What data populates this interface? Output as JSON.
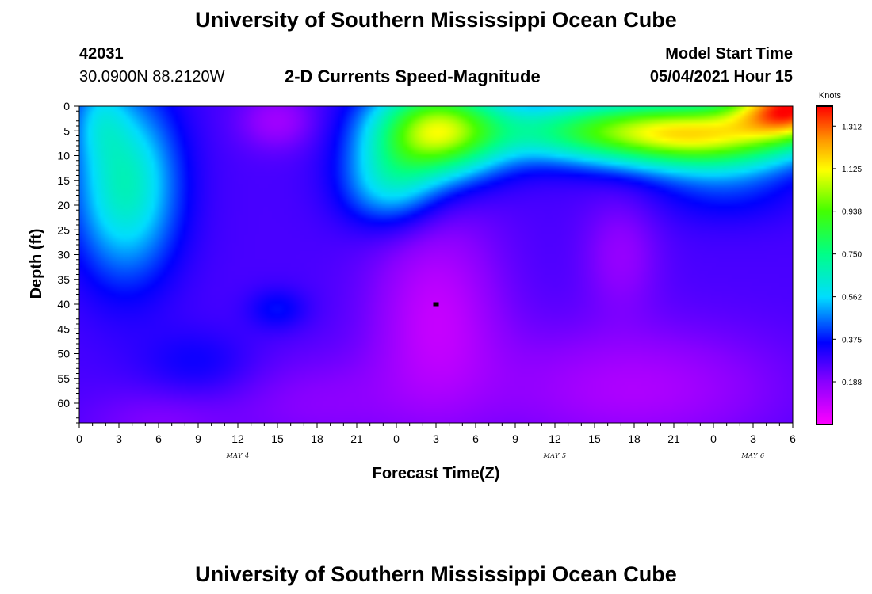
{
  "header": {
    "title_top": "University of Southern Mississippi Ocean Cube",
    "title_bottom": "University of Southern Mississippi Ocean Cube",
    "station_id": "42031",
    "coordinates": "30.0900N  88.2120W",
    "plot_title": "2-D Currents Speed-Magnitude",
    "model_start_label": "Model Start Time",
    "model_start_value": "05/04/2021 Hour 15"
  },
  "chart_data": {
    "type": "heatmap",
    "title": "2-D Currents Speed-Magnitude",
    "xlabel": "Forecast Time(Z)",
    "ylabel": "Depth (ft)",
    "x_tick_labels": [
      "0",
      "3",
      "6",
      "9",
      "12",
      "15",
      "18",
      "21",
      "0",
      "3",
      "6",
      "9",
      "12",
      "15",
      "18",
      "21",
      "0",
      "3",
      "6"
    ],
    "x_range_hours": [
      0,
      54
    ],
    "date_labels": [
      {
        "text": "MAY 4",
        "at_hour": 12
      },
      {
        "text": "MAY 5",
        "at_hour": 36
      },
      {
        "text": "MAY 6",
        "at_hour": 51
      }
    ],
    "y_tick_labels": [
      "0",
      "5",
      "10",
      "15",
      "20",
      "25",
      "30",
      "35",
      "40",
      "45",
      "50",
      "55",
      "60"
    ],
    "y_range_ft": [
      0,
      64
    ],
    "y_reversed": true,
    "colorbar": {
      "unit_label": "Knots",
      "range": [
        0,
        1.4
      ],
      "tick_labels": [
        "1.312",
        "1.125",
        "0.938",
        "0.750",
        "0.562",
        "0.375",
        "0.188"
      ],
      "tick_values": [
        1.312,
        1.125,
        0.938,
        0.75,
        0.562,
        0.375,
        0.188
      ],
      "colors": [
        {
          "v": 0.0,
          "c": "#ff00ff"
        },
        {
          "v": 0.19,
          "c": "#8800ff"
        },
        {
          "v": 0.36,
          "c": "#0000ff"
        },
        {
          "v": 0.56,
          "c": "#00ddff"
        },
        {
          "v": 0.75,
          "c": "#00ff88"
        },
        {
          "v": 0.94,
          "c": "#44ff00"
        },
        {
          "v": 1.12,
          "c": "#ffff00"
        },
        {
          "v": 1.25,
          "c": "#ff9900"
        },
        {
          "v": 1.4,
          "c": "#ff0000"
        }
      ]
    },
    "field": {
      "base": 0.27,
      "blobs": [
        {
          "t": 3.5,
          "d": 16,
          "st": 2.8,
          "sd": 13,
          "a": 0.4
        },
        {
          "t": 1.5,
          "d": 2,
          "st": 1.5,
          "sd": 6,
          "a": 0.15
        },
        {
          "t": 27,
          "d": 5,
          "st": 3.5,
          "sd": 6.5,
          "a": 0.78
        },
        {
          "t": 23.5,
          "d": 16,
          "st": 2.6,
          "sd": 6,
          "a": 0.28
        },
        {
          "t": 40,
          "d": 5,
          "st": 6,
          "sd": 4.5,
          "a": 0.55
        },
        {
          "t": 48,
          "d": 6,
          "st": 5,
          "sd": 5,
          "a": 0.6
        },
        {
          "t": 54,
          "d": 0,
          "st": 3,
          "sd": 4.5,
          "a": 0.95
        },
        {
          "t": 49,
          "d": 17,
          "st": 4,
          "sd": 5,
          "a": 0.1
        },
        {
          "t": 15,
          "d": 3,
          "st": 2,
          "sd": 4,
          "a": -0.12
        },
        {
          "t": 27,
          "d": 42,
          "st": 3.5,
          "sd": 15,
          "a": -0.17
        },
        {
          "t": 42,
          "d": 57,
          "st": 8,
          "sd": 9,
          "a": -0.14
        },
        {
          "t": 18,
          "d": 60,
          "st": 5,
          "sd": 7,
          "a": -0.08
        },
        {
          "t": 41,
          "d": 30,
          "st": 2,
          "sd": 8,
          "a": -0.1
        },
        {
          "t": 6,
          "d": 64,
          "st": 4,
          "sd": 5,
          "a": -0.07
        },
        {
          "t": 9,
          "d": 52,
          "st": 3,
          "sd": 5,
          "a": 0.08
        },
        {
          "t": 15,
          "d": 41,
          "st": 1.6,
          "sd": 3,
          "a": 0.1
        }
      ]
    },
    "marker": {
      "hour": 27,
      "depth_ft": 40
    }
  }
}
